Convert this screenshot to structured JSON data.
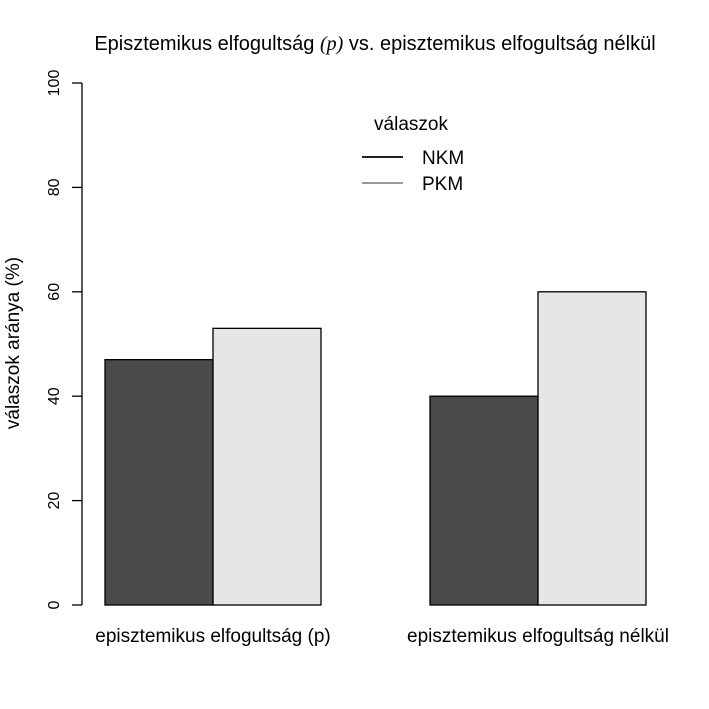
{
  "chart_data": {
    "type": "bar",
    "title_parts": [
      "Episztemikus elfogultság ",
      "(p)",
      " vs. episztemikus elfogultság nélkül"
    ],
    "title_italic_part": "p",
    "ylabel": "válaszok aránya (%)",
    "xlabel": "",
    "categories": [
      "episztemikus elfogultság (p)",
      "episztemikus elfogultság nélkül"
    ],
    "series": [
      {
        "name": "NKM",
        "values": [
          47,
          40
        ],
        "color": "#4a4a4a"
      },
      {
        "name": "PKM",
        "values": [
          53,
          60
        ],
        "color": "#e6e6e6"
      }
    ],
    "ylim": [
      0,
      100
    ],
    "yticks": [
      "0",
      "20",
      "40",
      "60",
      "80",
      "100"
    ],
    "legend": {
      "title": "válaszok",
      "placement": "top-center",
      "entries": [
        {
          "label": "NKM",
          "line_color": "#222222"
        },
        {
          "label": "PKM",
          "line_color": "#999999"
        }
      ]
    },
    "grid": false
  }
}
